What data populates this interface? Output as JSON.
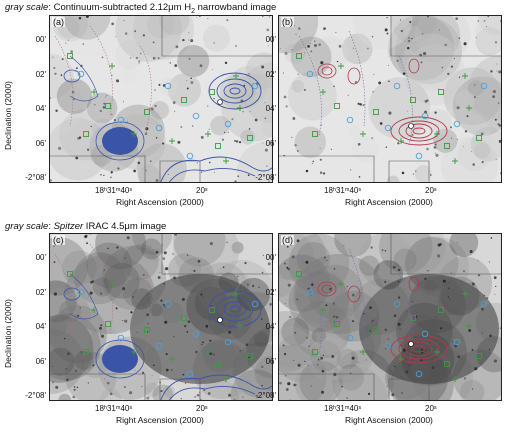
{
  "captions": {
    "top_prefix": "gray scale",
    "top_text": ": Continuum-subtracted 2.12μm H",
    "top_sub": "2",
    "top_suffix": " narrowband image",
    "bottom_prefix": "gray scale",
    "bottom_middle": ": ",
    "bottom_italic": "Spitzer",
    "bottom_text": " IRAC 4.5μm image"
  },
  "panels": [
    {
      "label": "(a)",
      "contours": "blue",
      "background": "h2"
    },
    {
      "label": "(b)",
      "contours": "red",
      "background": "h2"
    },
    {
      "label": "(c)",
      "contours": "blue",
      "background": "irac"
    },
    {
      "label": "(d)",
      "contours": "red",
      "background": "irac"
    }
  ],
  "axes": {
    "y_ticks": [
      "00'",
      "02'",
      "04'",
      "06'",
      "-2°08'"
    ],
    "x_ticks": [
      "18ʰ31ᵐ40ˢ",
      "20ˢ"
    ],
    "xlabel": "Right Ascension (2000)",
    "ylabel": "Declination (2000)"
  },
  "colors": {
    "blue_contour": "#3a55a8",
    "red_contour": "#b23a4a",
    "green_marker": "#3f9a3f",
    "cyan_marker": "#4aa0d8"
  }
}
